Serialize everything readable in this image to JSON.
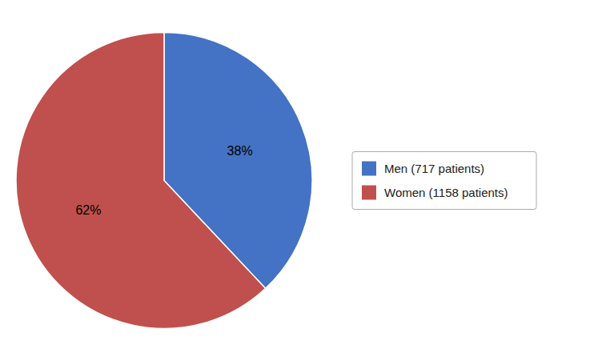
{
  "chart_data": {
    "type": "pie",
    "categories": [
      "Men (717 patients)",
      "Women (1158 patients)"
    ],
    "values": [
      38,
      62
    ],
    "value_labels": [
      "38%",
      "62%"
    ],
    "colors": [
      "#4472C4",
      "#C0504D"
    ],
    "data_labels": true,
    "legend": "right"
  }
}
